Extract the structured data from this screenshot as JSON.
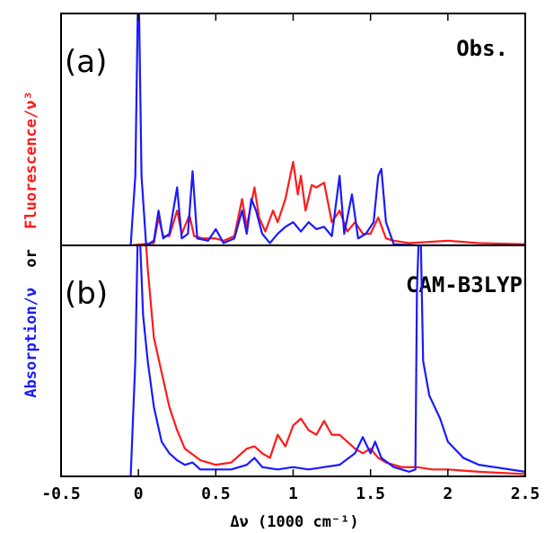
{
  "chart_data": [
    {
      "type": "line",
      "label": "(a)",
      "annotation": "Obs.",
      "ylabel": [
        {
          "text": "Absorption/ν",
          "color": "#1a1aff"
        },
        {
          "text": "or",
          "color": "#000000"
        },
        {
          "text": "Fluorescence/ν³",
          "color": "#ff1a1a"
        }
      ],
      "xlim": [
        -0.5,
        2.5
      ],
      "ylim": [
        0,
        1
      ],
      "series": [
        {
          "color": "#ff1a1a",
          "x": [
            -0.05,
            0.1,
            0.13,
            0.16,
            0.2,
            0.25,
            0.28,
            0.33,
            0.36,
            0.42,
            0.5,
            0.55,
            0.62,
            0.67,
            0.7,
            0.75,
            0.78,
            0.82,
            0.87,
            0.9,
            0.95,
            1.0,
            1.03,
            1.05,
            1.08,
            1.12,
            1.15,
            1.2,
            1.25,
            1.3,
            1.35,
            1.4,
            1.45,
            1.5,
            1.55,
            1.6,
            1.65,
            1.75,
            2.0,
            2.2,
            2.5
          ],
          "values": [
            0,
            0.01,
            0.12,
            0.04,
            0.04,
            0.15,
            0.05,
            0.13,
            0.04,
            0.03,
            0.03,
            0.02,
            0.04,
            0.2,
            0.08,
            0.25,
            0.12,
            0.06,
            0.15,
            0.1,
            0.2,
            0.36,
            0.22,
            0.3,
            0.15,
            0.26,
            0.25,
            0.27,
            0.1,
            0.15,
            0.06,
            0.1,
            0.05,
            0.05,
            0.12,
            0.03,
            0.02,
            0.01,
            0.02,
            0.01,
            0.005
          ]
        },
        {
          "color": "#1a1aff",
          "x": [
            -0.05,
            -0.02,
            0,
            0.02,
            0.05,
            0.1,
            0.13,
            0.16,
            0.2,
            0.25,
            0.28,
            0.32,
            0.35,
            0.38,
            0.45,
            0.5,
            0.55,
            0.62,
            0.67,
            0.7,
            0.73,
            0.76,
            0.8,
            0.85,
            0.9,
            0.95,
            1.0,
            1.05,
            1.1,
            1.15,
            1.2,
            1.25,
            1.3,
            1.33,
            1.38,
            1.42,
            1.47,
            1.52,
            1.55,
            1.57,
            1.6,
            1.65,
            1.8,
            2.5
          ],
          "values": [
            0,
            0.3,
            1.2,
            0.3,
            0,
            0.02,
            0.15,
            0.03,
            0.05,
            0.25,
            0.03,
            0.05,
            0.32,
            0.03,
            0.02,
            0.07,
            0.01,
            0.03,
            0.15,
            0.05,
            0.2,
            0.15,
            0.05,
            0.01,
            0.05,
            0.08,
            0.1,
            0.06,
            0.1,
            0.07,
            0.08,
            0.04,
            0.3,
            0.05,
            0.22,
            0.03,
            0.05,
            0.1,
            0.3,
            0.33,
            0.1,
            0.005,
            0,
            0
          ]
        }
      ]
    },
    {
      "type": "line",
      "label": "(b)",
      "annotation": "CAM-B3LYP",
      "xlim": [
        -0.5,
        2.5
      ],
      "ylim": [
        0,
        1
      ],
      "xticks": [
        -0.5,
        0,
        0.5,
        1,
        1.5,
        2,
        2.5
      ],
      "xlabel": "Δν (1000 cm⁻¹)",
      "series": [
        {
          "color": "#ff1a1a",
          "x": [
            0.03,
            0.06,
            0.1,
            0.15,
            0.2,
            0.25,
            0.3,
            0.4,
            0.5,
            0.6,
            0.7,
            0.75,
            0.8,
            0.85,
            0.9,
            0.95,
            1.0,
            1.05,
            1.1,
            1.15,
            1.2,
            1.25,
            1.3,
            1.35,
            1.4,
            1.45,
            1.5,
            1.55,
            1.6,
            1.7,
            1.8,
            1.9,
            2.0,
            2.2,
            2.5
          ],
          "values": [
            1.2,
            0.9,
            0.6,
            0.45,
            0.3,
            0.2,
            0.12,
            0.07,
            0.05,
            0.06,
            0.12,
            0.13,
            0.1,
            0.08,
            0.18,
            0.13,
            0.22,
            0.25,
            0.2,
            0.18,
            0.24,
            0.18,
            0.18,
            0.15,
            0.12,
            0.1,
            0.12,
            0.08,
            0.06,
            0.04,
            0.04,
            0.03,
            0.03,
            0.02,
            0.01
          ]
        },
        {
          "color": "#1a1aff",
          "x": [
            -0.05,
            -0.02,
            0,
            0.03,
            0.06,
            0.1,
            0.15,
            0.2,
            0.25,
            0.3,
            0.35,
            0.4,
            0.5,
            0.6,
            0.7,
            0.75,
            0.8,
            0.9,
            1.0,
            1.1,
            1.2,
            1.3,
            1.4,
            1.45,
            1.5,
            1.53,
            1.57,
            1.65,
            1.75,
            1.79,
            1.8,
            1.82,
            1.84,
            1.88,
            1.95,
            2.0,
            2.1,
            2.2,
            2.3,
            2.5
          ],
          "values": [
            0,
            0.5,
            1.2,
            0.7,
            0.5,
            0.3,
            0.15,
            0.1,
            0.07,
            0.05,
            0.06,
            0.03,
            0.03,
            0.03,
            0.05,
            0.08,
            0.04,
            0.03,
            0.04,
            0.03,
            0.04,
            0.05,
            0.1,
            0.17,
            0.1,
            0.15,
            0.08,
            0.04,
            0.02,
            0.03,
            0.8,
            1.2,
            0.5,
            0.35,
            0.25,
            0.15,
            0.08,
            0.05,
            0.04,
            0.02
          ]
        }
      ]
    }
  ]
}
